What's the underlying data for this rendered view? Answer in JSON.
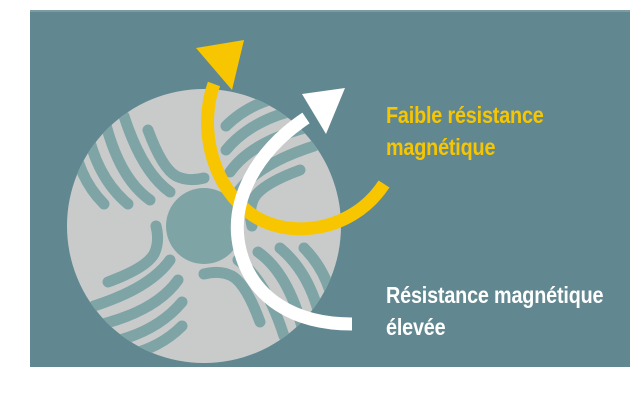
{
  "labels": {
    "low_resistance": {
      "line1": "Faible résistance",
      "line2": "magnétique"
    },
    "high_resistance": {
      "line1": "Résistance magnétique",
      "line2": "élevée"
    }
  },
  "colors": {
    "background_panel": "#618891",
    "rotor_disc": "#c9cbcb",
    "flux_barrier": "#7fa4a6",
    "low_resistance_arrow": "#f7c600",
    "high_resistance_arrow": "#ffffff"
  },
  "icons": {
    "rotor": "rotor-cross-section-icon",
    "low_arrow": "curved-arrow-yellow-icon",
    "high_arrow": "curved-arrow-white-icon"
  }
}
